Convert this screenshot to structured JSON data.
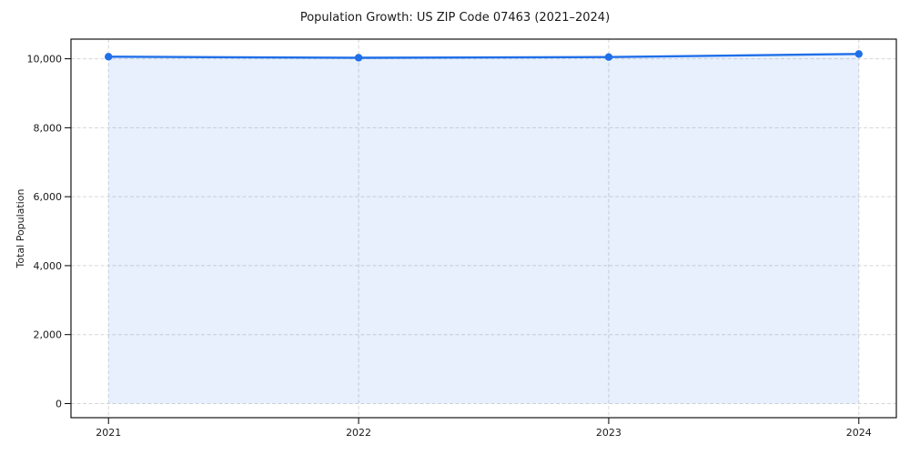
{
  "chart_data": {
    "type": "area",
    "title": "Population Growth: US ZIP Code 07463 (2021–2024)",
    "xlabel": "",
    "ylabel": "Total Population",
    "x": [
      2021,
      2022,
      2023,
      2024
    ],
    "x_tick_labels": [
      "2021",
      "2022",
      "2023",
      "2024"
    ],
    "series": [
      {
        "name": "Total Population",
        "values": [
          10060,
          10030,
          10050,
          10140
        ]
      }
    ],
    "yticks": [
      0,
      2000,
      4000,
      6000,
      8000,
      10000
    ],
    "ytick_labels": [
      "0",
      "2,000",
      "4,000",
      "6,000",
      "8,000",
      "10,000"
    ],
    "xlim": [
      2020.85,
      2024.15
    ],
    "ylim": [
      -410,
      10570
    ],
    "grid": true,
    "grid_style": "dashed",
    "legend": false,
    "colors": {
      "line": "#1f6fe8",
      "marker": "#1f6fe8",
      "fill": "rgba(31,111,232,0.10)",
      "grid": "#d6d6d6",
      "spine": "#000000",
      "text": "#1a1a1a",
      "background": "#ffffff"
    }
  }
}
